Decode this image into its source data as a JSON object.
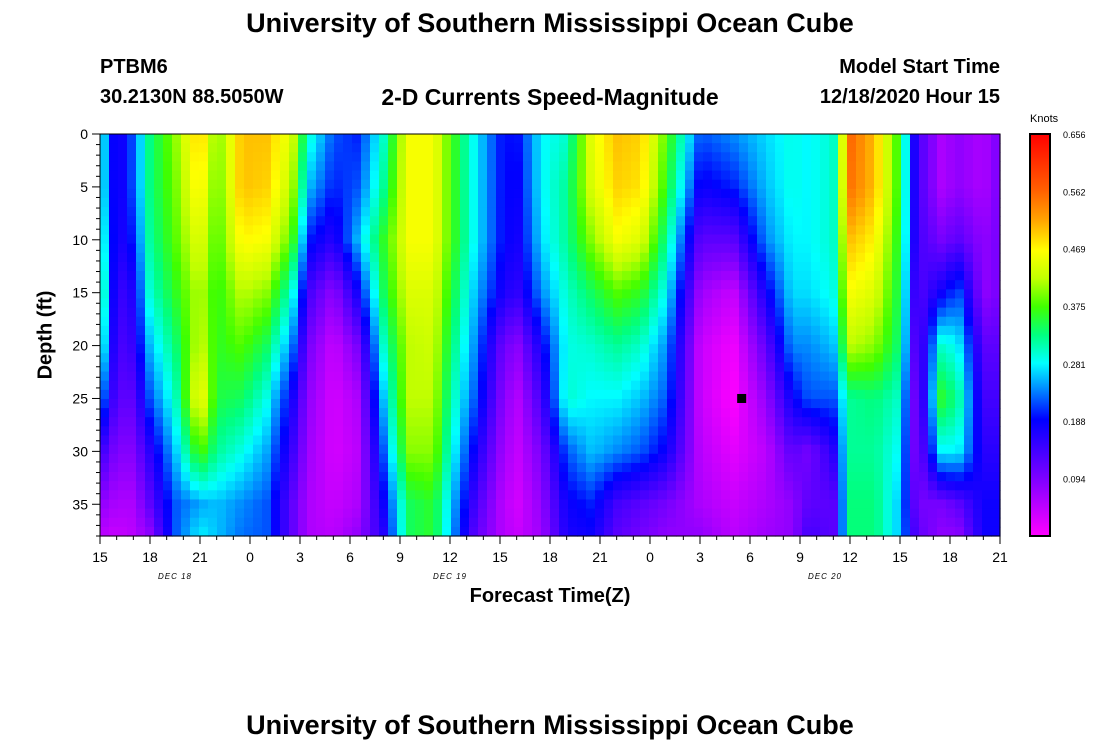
{
  "header": {
    "title_top": "University of Southern Mississippi Ocean Cube",
    "title_bottom": "University of Southern Mississippi Ocean Cube",
    "station_id": "PTBM6",
    "station_coords": "30.2130N 88.5050W",
    "model_start_label": "Model Start Time",
    "model_start_value": "12/18/2020 Hour 15"
  },
  "chart_data": {
    "type": "heatmap",
    "title": "2-D Currents Speed-Magnitude",
    "xlabel": "Forecast Time(Z)",
    "ylabel": "Depth (ft)",
    "colorbar_label": "Knots",
    "x_range_hours": [
      0,
      54
    ],
    "x_tick_labels": [
      "15",
      "18",
      "21",
      "0",
      "3",
      "6",
      "9",
      "12",
      "15",
      "18",
      "21",
      "0",
      "3",
      "6",
      "9",
      "12",
      "15",
      "18",
      "21"
    ],
    "x_tick_hours": [
      0,
      3,
      6,
      9,
      12,
      15,
      18,
      21,
      24,
      27,
      30,
      33,
      36,
      39,
      42,
      45,
      48,
      51,
      54
    ],
    "date_labels": [
      {
        "text": "DEC 18",
        "hour": 4.5
      },
      {
        "text": "DEC 19",
        "hour": 21
      },
      {
        "text": "DEC 20",
        "hour": 43.5
      }
    ],
    "y_range": [
      0,
      38
    ],
    "y_inverted": true,
    "y_ticks": [
      0,
      5,
      10,
      15,
      20,
      25,
      30,
      35
    ],
    "colorbar_ticks": [
      "0.656",
      "0.562",
      "0.469",
      "0.375",
      "0.281",
      "0.188",
      "0.094"
    ],
    "colorbar_range": [
      0,
      0.656
    ],
    "marker": {
      "hour": 38.5,
      "depth": 25
    },
    "depths": [
      0,
      5,
      10,
      15,
      20,
      25,
      30,
      35,
      38
    ],
    "columns": [
      {
        "hour": 0,
        "values": [
          0.3,
          0.3,
          0.32,
          0.35,
          0.32,
          0.25,
          0.15,
          0.08,
          0.05
        ]
      },
      {
        "hour": 1,
        "values": [
          0.16,
          0.16,
          0.16,
          0.14,
          0.13,
          0.12,
          0.09,
          0.06,
          0.04
        ]
      },
      {
        "hour": 2,
        "values": [
          0.22,
          0.22,
          0.2,
          0.17,
          0.15,
          0.12,
          0.09,
          0.06,
          0.05
        ]
      },
      {
        "hour": 3,
        "values": [
          0.33,
          0.33,
          0.32,
          0.3,
          0.26,
          0.22,
          0.16,
          0.12,
          0.08
        ]
      },
      {
        "hour": 4.5,
        "values": [
          0.4,
          0.39,
          0.38,
          0.36,
          0.33,
          0.3,
          0.26,
          0.22,
          0.22
        ]
      },
      {
        "hour": 6,
        "values": [
          0.5,
          0.48,
          0.45,
          0.42,
          0.43,
          0.47,
          0.38,
          0.25,
          0.28
        ]
      },
      {
        "hour": 7,
        "values": [
          0.39,
          0.38,
          0.37,
          0.36,
          0.36,
          0.35,
          0.32,
          0.26,
          0.26
        ]
      },
      {
        "hour": 8.5,
        "values": [
          0.5,
          0.5,
          0.47,
          0.42,
          0.38,
          0.34,
          0.29,
          0.24,
          0.23
        ]
      },
      {
        "hour": 10,
        "values": [
          0.5,
          0.49,
          0.46,
          0.4,
          0.34,
          0.29,
          0.25,
          0.22,
          0.22
        ]
      },
      {
        "hour": 11.5,
        "values": [
          0.44,
          0.42,
          0.38,
          0.3,
          0.24,
          0.18,
          0.15,
          0.12,
          0.12
        ]
      },
      {
        "hour": 12.5,
        "values": [
          0.3,
          0.26,
          0.2,
          0.14,
          0.1,
          0.08,
          0.07,
          0.06,
          0.06
        ]
      },
      {
        "hour": 14,
        "values": [
          0.22,
          0.2,
          0.16,
          0.08,
          0.04,
          0.03,
          0.03,
          0.04,
          0.05
        ]
      },
      {
        "hour": 15.5,
        "values": [
          0.2,
          0.22,
          0.26,
          0.18,
          0.1,
          0.06,
          0.05,
          0.06,
          0.08
        ]
      },
      {
        "hour": 17,
        "values": [
          0.3,
          0.32,
          0.36,
          0.34,
          0.3,
          0.26,
          0.22,
          0.18,
          0.16
        ]
      },
      {
        "hour": 18.5,
        "values": [
          0.46,
          0.46,
          0.46,
          0.44,
          0.42,
          0.42,
          0.4,
          0.34,
          0.34
        ]
      },
      {
        "hour": 20,
        "values": [
          0.46,
          0.46,
          0.46,
          0.44,
          0.43,
          0.42,
          0.4,
          0.36,
          0.36
        ]
      },
      {
        "hour": 21,
        "values": [
          0.38,
          0.38,
          0.38,
          0.36,
          0.34,
          0.32,
          0.3,
          0.27,
          0.26
        ]
      },
      {
        "hour": 22.5,
        "values": [
          0.28,
          0.28,
          0.28,
          0.26,
          0.24,
          0.22,
          0.18,
          0.14,
          0.12
        ]
      },
      {
        "hour": 24,
        "values": [
          0.2,
          0.2,
          0.2,
          0.18,
          0.12,
          0.1,
          0.08,
          0.06,
          0.06
        ]
      },
      {
        "hour": 25,
        "values": [
          0.19,
          0.18,
          0.17,
          0.15,
          0.08,
          0.05,
          0.04,
          0.03,
          0.04
        ]
      },
      {
        "hour": 26.5,
        "values": [
          0.28,
          0.28,
          0.27,
          0.24,
          0.18,
          0.14,
          0.1,
          0.08,
          0.07
        ]
      },
      {
        "hour": 28,
        "values": [
          0.3,
          0.32,
          0.32,
          0.3,
          0.29,
          0.3,
          0.22,
          0.18,
          0.17
        ]
      },
      {
        "hour": 29.5,
        "values": [
          0.45,
          0.44,
          0.4,
          0.34,
          0.3,
          0.28,
          0.26,
          0.2,
          0.18
        ]
      },
      {
        "hour": 31,
        "values": [
          0.5,
          0.49,
          0.46,
          0.38,
          0.32,
          0.28,
          0.24,
          0.14,
          0.12
        ]
      },
      {
        "hour": 32.5,
        "values": [
          0.49,
          0.48,
          0.44,
          0.36,
          0.3,
          0.26,
          0.22,
          0.12,
          0.1
        ]
      },
      {
        "hour": 34,
        "values": [
          0.38,
          0.36,
          0.32,
          0.28,
          0.24,
          0.22,
          0.18,
          0.1,
          0.08
        ]
      },
      {
        "hour": 36,
        "values": [
          0.22,
          0.18,
          0.12,
          0.07,
          0.04,
          0.04,
          0.05,
          0.06,
          0.08
        ]
      },
      {
        "hour": 38,
        "values": [
          0.24,
          0.2,
          0.12,
          0.04,
          0.01,
          0.0,
          0.02,
          0.04,
          0.05
        ]
      },
      {
        "hour": 40,
        "values": [
          0.27,
          0.26,
          0.24,
          0.18,
          0.12,
          0.08,
          0.05,
          0.06,
          0.07
        ]
      },
      {
        "hour": 41.5,
        "values": [
          0.29,
          0.29,
          0.28,
          0.27,
          0.24,
          0.18,
          0.12,
          0.08,
          0.08
        ]
      },
      {
        "hour": 42.5,
        "values": [
          0.28,
          0.28,
          0.28,
          0.27,
          0.24,
          0.22,
          0.1,
          0.12,
          0.14
        ]
      },
      {
        "hour": 44,
        "values": [
          0.3,
          0.3,
          0.3,
          0.29,
          0.26,
          0.22,
          0.16,
          0.12,
          0.12
        ]
      },
      {
        "hour": 45,
        "values": [
          0.56,
          0.55,
          0.5,
          0.46,
          0.42,
          0.32,
          0.32,
          0.33,
          0.33
        ]
      },
      {
        "hour": 46.5,
        "values": [
          0.5,
          0.5,
          0.47,
          0.44,
          0.4,
          0.33,
          0.32,
          0.33,
          0.33
        ]
      },
      {
        "hour": 48,
        "values": [
          0.36,
          0.36,
          0.35,
          0.34,
          0.33,
          0.3,
          0.28,
          0.26,
          0.26
        ]
      },
      {
        "hour": 49,
        "values": [
          0.14,
          0.14,
          0.14,
          0.12,
          0.1,
          0.08,
          0.08,
          0.1,
          0.12
        ]
      },
      {
        "hour": 50.5,
        "values": [
          0.06,
          0.06,
          0.1,
          0.18,
          0.3,
          0.36,
          0.28,
          0.1,
          0.08
        ]
      },
      {
        "hour": 51.5,
        "values": [
          0.08,
          0.08,
          0.12,
          0.22,
          0.28,
          0.32,
          0.28,
          0.12,
          0.08
        ]
      },
      {
        "hour": 53,
        "values": [
          0.06,
          0.06,
          0.08,
          0.08,
          0.12,
          0.14,
          0.16,
          0.18,
          0.18
        ]
      },
      {
        "hour": 54,
        "values": [
          0.1,
          0.1,
          0.1,
          0.1,
          0.12,
          0.14,
          0.16,
          0.18,
          0.18
        ]
      }
    ]
  }
}
